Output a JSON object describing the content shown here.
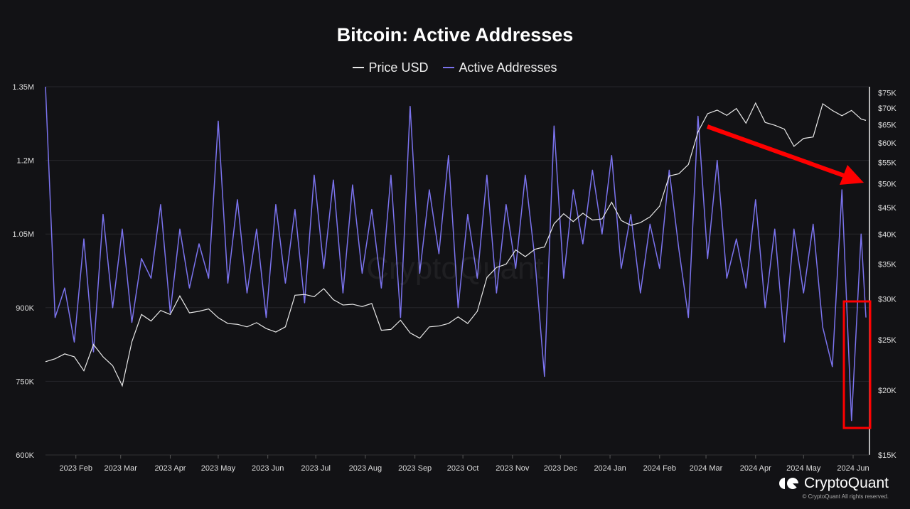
{
  "chart_data": {
    "type": "line",
    "title": "Bitcoin: Active Addresses",
    "legend_position": "top",
    "grid": true,
    "left_axis": {
      "scale": "linear",
      "ylim": [
        600000,
        1350000
      ],
      "ticks": [
        600000,
        750000,
        900000,
        1050000,
        1200000,
        1350000
      ],
      "tick_labels": [
        "600K",
        "750K",
        "900K",
        "1.05M",
        "1.2M",
        "1.35M"
      ]
    },
    "right_axis": {
      "scale": "log",
      "ylim": [
        15000,
        77000
      ],
      "ticks": [
        15000,
        20000,
        25000,
        30000,
        35000,
        40000,
        45000,
        50000,
        55000,
        60000,
        65000,
        70000,
        75000
      ],
      "tick_labels": [
        "$15K",
        "$20K",
        "$25K",
        "$30K",
        "$35K",
        "$40K",
        "$45K",
        "$50K",
        "$55K",
        "$60K",
        "$65K",
        "$70K",
        "$75K"
      ]
    },
    "xlim": [
      "2023-01-20",
      "2024-06-16"
    ],
    "x_tick_labels": [
      "2023 Feb",
      "2023 Mar",
      "2023 Apr",
      "2023 May",
      "2023 Jun",
      "2023 Jul",
      "2023 Aug",
      "2023 Sep",
      "2023 Oct",
      "2023 Nov",
      "2023 Dec",
      "2024 Jan",
      "2024 Feb",
      "2024 Mar",
      "2024 Apr",
      "2024 May",
      "2024 Jun"
    ],
    "x": [
      "2023-01-20",
      "2023-01-26",
      "2023-02-01",
      "2023-02-07",
      "2023-02-13",
      "2023-02-19",
      "2023-02-25",
      "2023-03-03",
      "2023-03-09",
      "2023-03-15",
      "2023-03-21",
      "2023-03-27",
      "2023-04-02",
      "2023-04-08",
      "2023-04-14",
      "2023-04-20",
      "2023-04-26",
      "2023-05-02",
      "2023-05-08",
      "2023-05-14",
      "2023-05-20",
      "2023-05-26",
      "2023-06-01",
      "2023-06-07",
      "2023-06-13",
      "2023-06-19",
      "2023-06-25",
      "2023-07-01",
      "2023-07-07",
      "2023-07-13",
      "2023-07-19",
      "2023-07-25",
      "2023-07-31",
      "2023-08-06",
      "2023-08-12",
      "2023-08-18",
      "2023-08-24",
      "2023-08-30",
      "2023-09-05",
      "2023-09-11",
      "2023-09-17",
      "2023-09-23",
      "2023-09-29",
      "2023-10-05",
      "2023-10-11",
      "2023-10-17",
      "2023-10-23",
      "2023-10-29",
      "2023-11-04",
      "2023-11-10",
      "2023-11-16",
      "2023-11-22",
      "2023-11-28",
      "2023-12-04",
      "2023-12-10",
      "2023-12-16",
      "2023-12-22",
      "2023-12-28",
      "2024-01-03",
      "2024-01-09",
      "2024-01-15",
      "2024-01-21",
      "2024-01-27",
      "2024-02-02",
      "2024-02-08",
      "2024-02-14",
      "2024-02-20",
      "2024-02-26",
      "2024-03-03",
      "2024-03-09",
      "2024-03-15",
      "2024-03-21",
      "2024-03-27",
      "2024-04-02",
      "2024-04-08",
      "2024-04-14",
      "2024-04-20",
      "2024-04-26",
      "2024-05-02",
      "2024-05-08",
      "2024-05-14",
      "2024-05-20",
      "2024-05-26",
      "2024-06-01",
      "2024-06-07",
      "2024-06-13",
      "2024-06-16"
    ],
    "series": [
      {
        "name": "Price USD",
        "axis": "right",
        "color": "#e8e8e8",
        "values": [
          22700,
          23000,
          23500,
          23200,
          21800,
          24500,
          23200,
          22300,
          20400,
          24800,
          28000,
          27200,
          28500,
          28000,
          30400,
          28200,
          28400,
          28700,
          27600,
          26900,
          26800,
          26500,
          27000,
          26300,
          25900,
          26500,
          30500,
          30600,
          30300,
          31400,
          29900,
          29200,
          29300,
          29000,
          29400,
          26100,
          26200,
          27300,
          25800,
          25200,
          26500,
          26600,
          26900,
          27700,
          26900,
          28400,
          33000,
          34500,
          35000,
          37300,
          36200,
          37400,
          37800,
          41900,
          43800,
          42300,
          43900,
          42600,
          42800,
          46100,
          42500,
          41600,
          42100,
          43200,
          45300,
          51800,
          52300,
          54500,
          63000,
          68300,
          69400,
          67800,
          69900,
          65500,
          71600,
          65700,
          64900,
          63800,
          59100,
          61200,
          61600,
          71400,
          69300,
          67700,
          69300,
          66700,
          66300
        ]
      },
      {
        "name": "Active Addresses",
        "axis": "left",
        "color": "#7b73ee",
        "values": [
          1350000,
          880000,
          940000,
          830000,
          1040000,
          810000,
          1090000,
          900000,
          1060000,
          870000,
          1000000,
          960000,
          1110000,
          890000,
          1060000,
          940000,
          1030000,
          960000,
          1280000,
          950000,
          1120000,
          930000,
          1060000,
          880000,
          1110000,
          950000,
          1100000,
          910000,
          1170000,
          980000,
          1160000,
          930000,
          1150000,
          970000,
          1100000,
          940000,
          1170000,
          880000,
          1310000,
          970000,
          1140000,
          1010000,
          1210000,
          900000,
          1090000,
          960000,
          1170000,
          930000,
          1110000,
          980000,
          1170000,
          1000000,
          760000,
          1270000,
          960000,
          1140000,
          1030000,
          1180000,
          1050000,
          1210000,
          980000,
          1090000,
          930000,
          1070000,
          980000,
          1180000,
          1020000,
          880000,
          1290000,
          1000000,
          1200000,
          960000,
          1040000,
          940000,
          1120000,
          900000,
          1060000,
          830000,
          1060000,
          930000,
          1070000,
          860000,
          780000,
          1140000,
          670000,
          1050000,
          880000
        ]
      }
    ],
    "annotations": {
      "arrow_color": "#ff0000",
      "box_color": "#ff0000"
    }
  },
  "watermark": "CryptoQuant",
  "brand": {
    "name": "CryptoQuant",
    "copyright": "© CryptoQuant All rights reserved."
  }
}
